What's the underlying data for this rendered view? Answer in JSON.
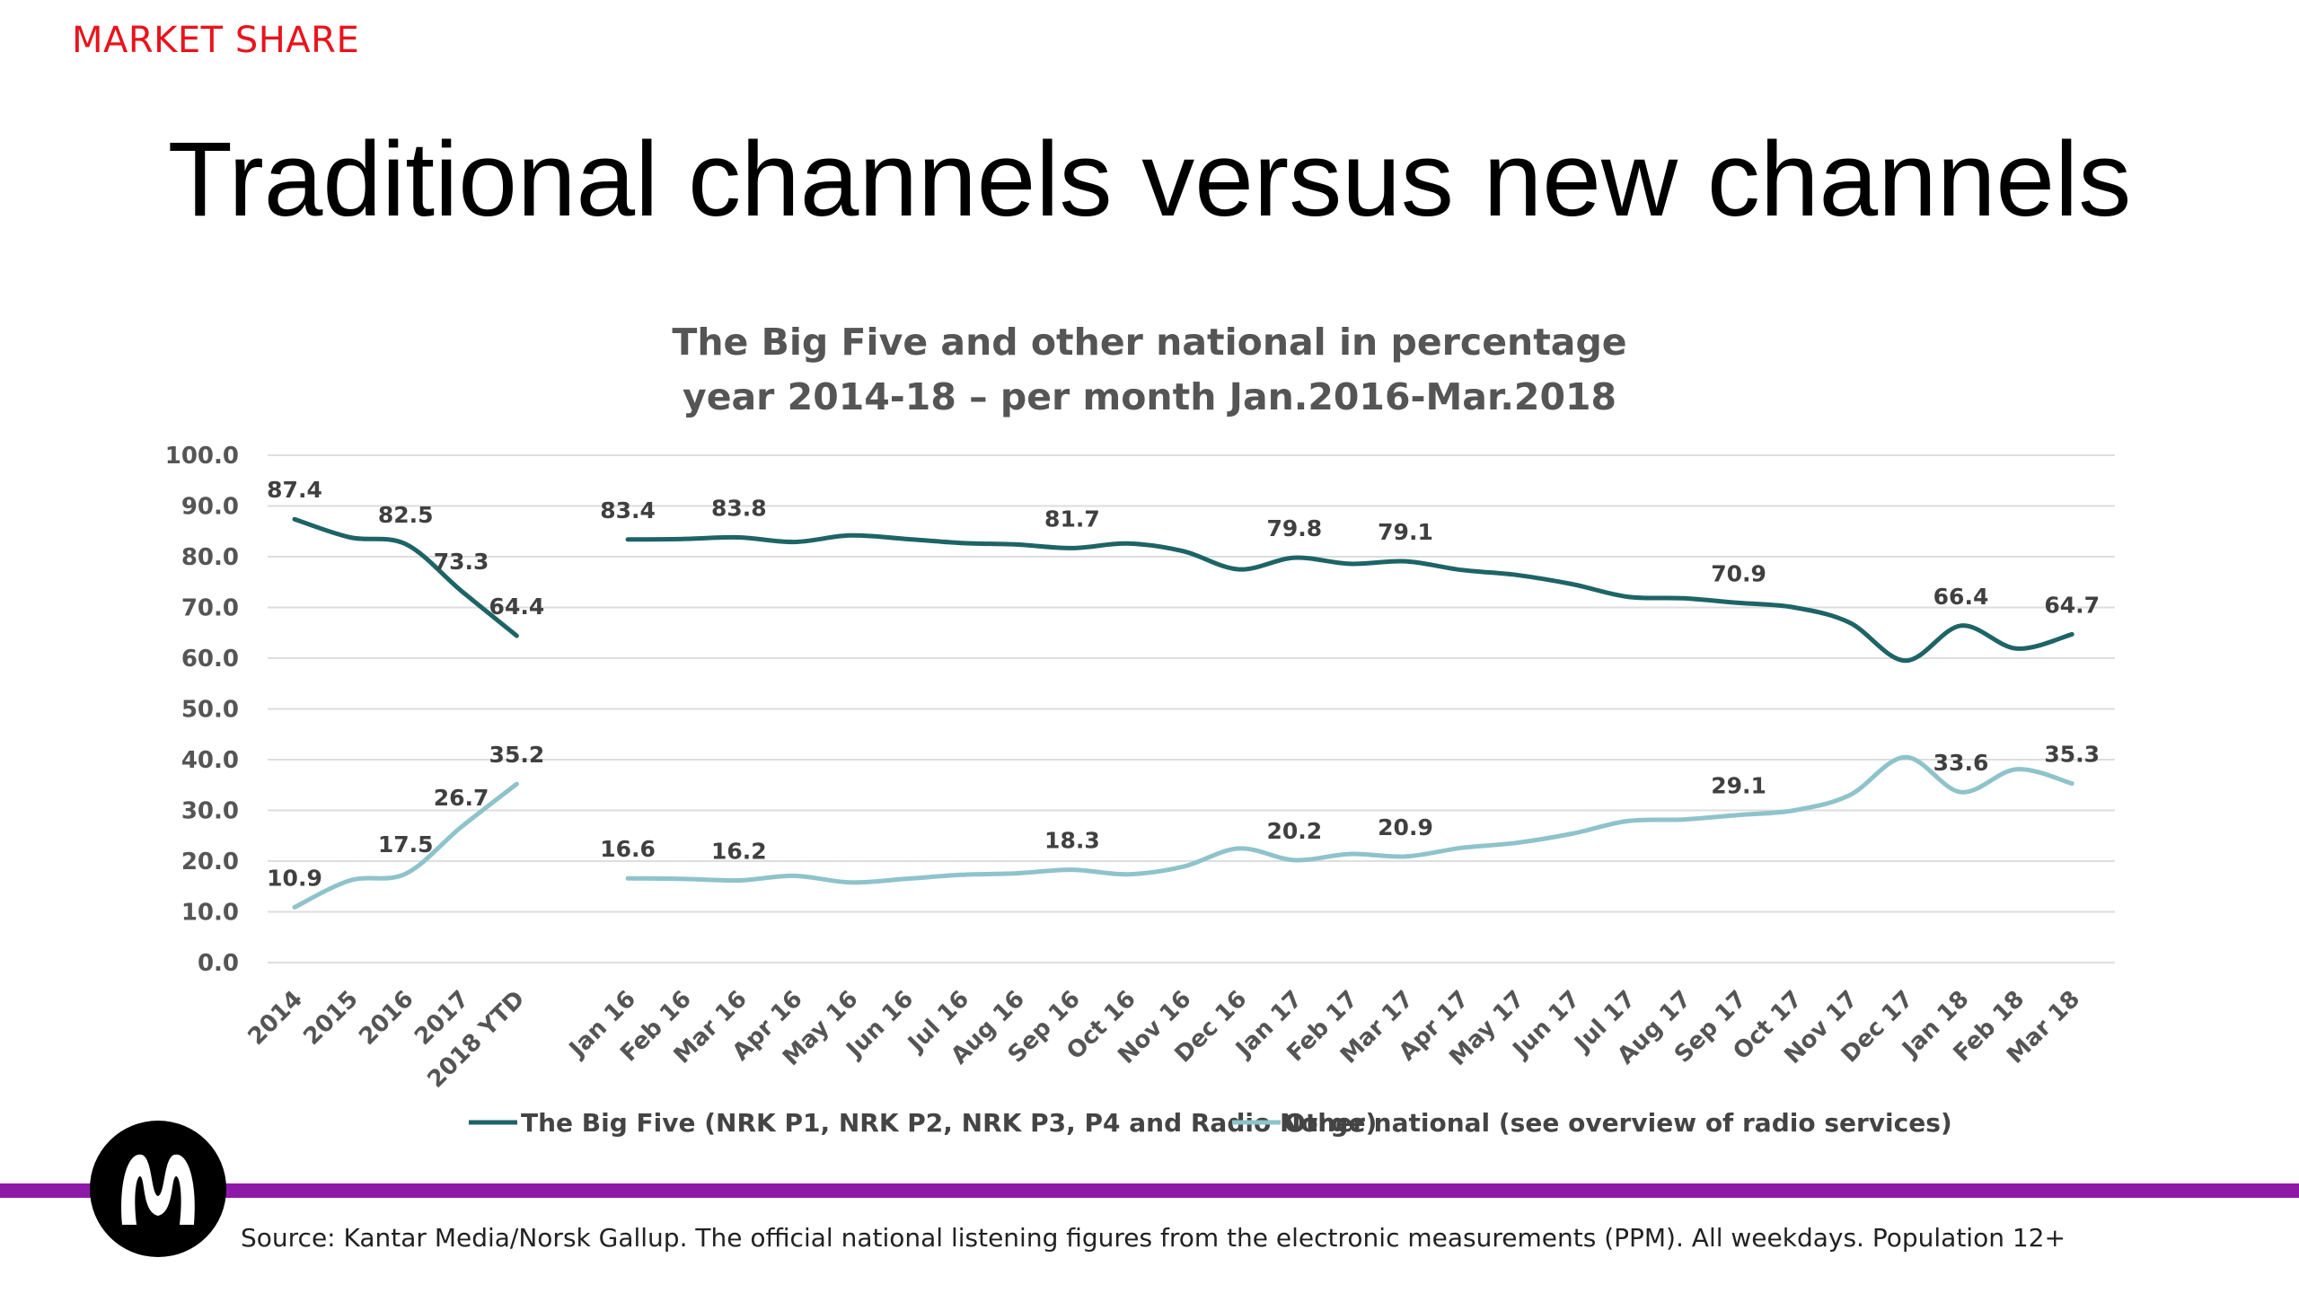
{
  "header": {
    "tag": "MARKET SHARE",
    "title": "Traditional channels versus new channels"
  },
  "footer": {
    "source": "Source: Kantar Media/Norsk Gallup. The official national listening figures from the electronic measurements (PPM). All weekdays. Population 12+"
  },
  "colors": {
    "big_five": "#1d6466",
    "other_national": "#8fc3cb",
    "band": "#8e19a8",
    "tag": "#e8141c"
  },
  "chart_data": {
    "type": "line",
    "title": [
      "The Big Five and other national in percentage",
      "year 2014-18 – per month Jan.2016-Mar.2018"
    ],
    "ylim": [
      0,
      100
    ],
    "yticks": [
      "0.0",
      "10.0",
      "20.0",
      "30.0",
      "40.0",
      "50.0",
      "60.0",
      "70.0",
      "80.0",
      "90.0",
      "100.0"
    ],
    "grid": true,
    "legend_position": "bottom",
    "categories": [
      "2014",
      "2015",
      "2016",
      "2017",
      "2018 YTD",
      "",
      "Jan 16",
      "Feb 16",
      "Mar 16",
      "Apr 16",
      "May 16",
      "Jun 16",
      "Jul 16",
      "Aug 16",
      "Sep 16",
      "Oct 16",
      "Nov 16",
      "Dec 16",
      "Jan 17",
      "Feb 17",
      "Mar 17",
      "Apr 17",
      "May 17",
      "Jun 17",
      "Jul 17",
      "Aug 17",
      "Sep 17",
      "Oct 17",
      "Nov 17",
      "Dec 17",
      "Jan 18",
      "Feb 18",
      "Mar 18"
    ],
    "series": [
      {
        "name": "The Big Five (NRK P1, NRK P2, NRK P3, P4 and Radio Norge)",
        "values": [
          87.4,
          83.8,
          82.5,
          73.3,
          64.4,
          null,
          83.4,
          83.5,
          83.8,
          82.9,
          84.2,
          83.5,
          82.7,
          82.4,
          81.7,
          82.6,
          81.1,
          77.5,
          79.8,
          78.6,
          79.1,
          77.4,
          76.4,
          74.6,
          72.1,
          71.8,
          70.9,
          70.0,
          67.0,
          59.5,
          66.4,
          61.9,
          64.7
        ],
        "labels": {
          "0": "87.4",
          "2": "82.5",
          "3": "73.3",
          "4": "64.4",
          "6": "83.4",
          "8": "83.8",
          "14": "81.7",
          "18": "79.8",
          "20": "79.1",
          "26": "70.9",
          "30": "66.4",
          "32": "64.7"
        }
      },
      {
        "name": "Other national (see overview of radio services)",
        "values": [
          10.9,
          16.2,
          17.5,
          26.7,
          35.2,
          null,
          16.6,
          16.5,
          16.2,
          17.1,
          15.8,
          16.5,
          17.3,
          17.6,
          18.3,
          17.4,
          18.9,
          22.5,
          20.2,
          21.4,
          20.9,
          22.6,
          23.6,
          25.4,
          27.9,
          28.2,
          29.1,
          30.0,
          33.0,
          40.5,
          33.6,
          38.1,
          35.3
        ],
        "labels": {
          "0": "10.9",
          "2": "17.5",
          "3": "26.7",
          "4": "35.2",
          "6": "16.6",
          "8": "16.2",
          "14": "18.3",
          "18": "20.2",
          "20": "20.9",
          "26": "29.1",
          "30": "33.6",
          "32": "35.3"
        }
      }
    ]
  }
}
